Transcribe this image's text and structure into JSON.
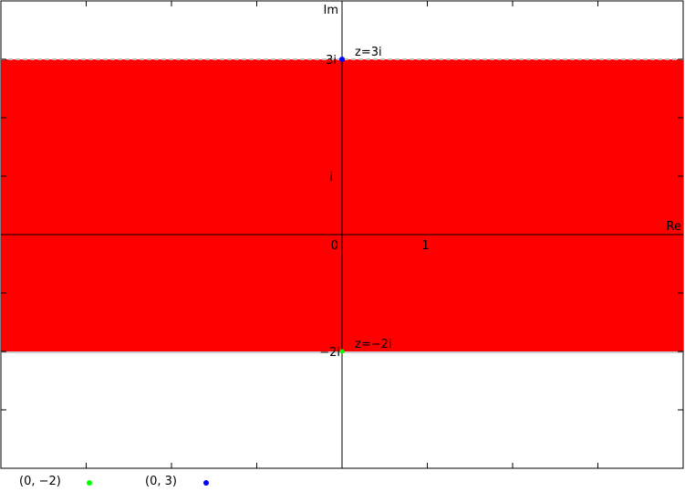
{
  "chart_data": {
    "type": "area",
    "title": "",
    "xlabel": "Re",
    "ylabel": "Im",
    "xlim": [
      -4,
      4
    ],
    "ylim": [
      -4,
      4
    ],
    "grid": false,
    "region": {
      "y_from": -2,
      "y_to": 3,
      "color": "#ff0000",
      "upper_boundary": "dashed",
      "lower_boundary": "solid"
    },
    "tick_labels": {
      "origin": "0",
      "x_one": "1",
      "y_one": "i",
      "y_three": "3i",
      "y_minus_two": "−2i"
    },
    "points": [
      {
        "x": 0,
        "y": 3,
        "label": "z=3i",
        "color": "#0000ff"
      },
      {
        "x": 0,
        "y": -2,
        "label": "z=−2i",
        "color": "#00ff00"
      }
    ],
    "legend": {
      "placement": "bottom-left",
      "entries": [
        {
          "label": "(0, −2)",
          "color": "#00ff00"
        },
        {
          "label": "(0, 3)",
          "color": "#0000ff"
        }
      ]
    }
  }
}
